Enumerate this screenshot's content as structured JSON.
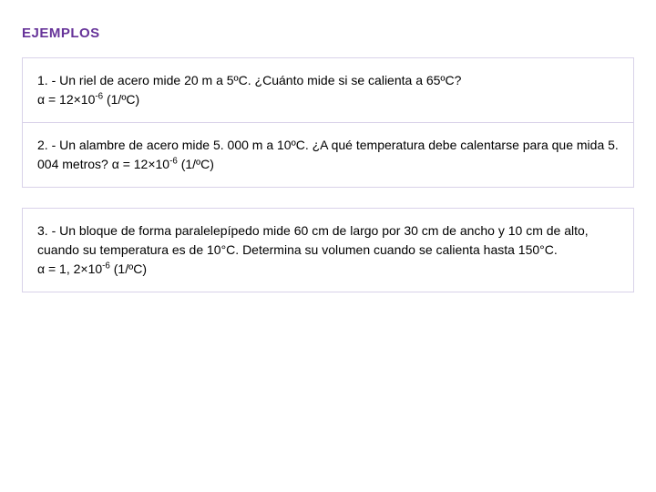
{
  "title": "EJEMPLOS",
  "examples": {
    "e1": {
      "line1": "1. - Un riel de acero  mide 20 m a 5ºC. ¿Cuánto mide si se calienta a 65ºC?",
      "alpha_prefix": "α = 12×10",
      "alpha_exp": "-6",
      "alpha_suffix": " (1/ºC)"
    },
    "e2": {
      "text_a": " 2. - Un alambre de acero mide 5. 000 m a 10ºC. ¿A qué temperatura debe calentarse para que mida 5. 004 metros?   α = 12×10",
      "exp": "-6",
      "text_b": " (1/ºC)"
    },
    "e3": {
      "body": "3. - Un bloque de  forma paralelepípedo mide 60 cm de largo por 30 cm de ancho y 10 cm de alto, cuando su temperatura es de 10°C. Determina su volumen cuando se calienta hasta 150°C.",
      "alpha_prefix": "  α = 1, 2×10",
      "alpha_exp": "-6",
      "alpha_suffix": " (1/ºC) "
    }
  },
  "colors": {
    "title": "#663399",
    "border": "#d9d2e9",
    "background": "#ffffff",
    "text": "#000000"
  },
  "fonts": {
    "body_size_pt": 11,
    "title_size_pt": 11,
    "family": "Verdana"
  }
}
